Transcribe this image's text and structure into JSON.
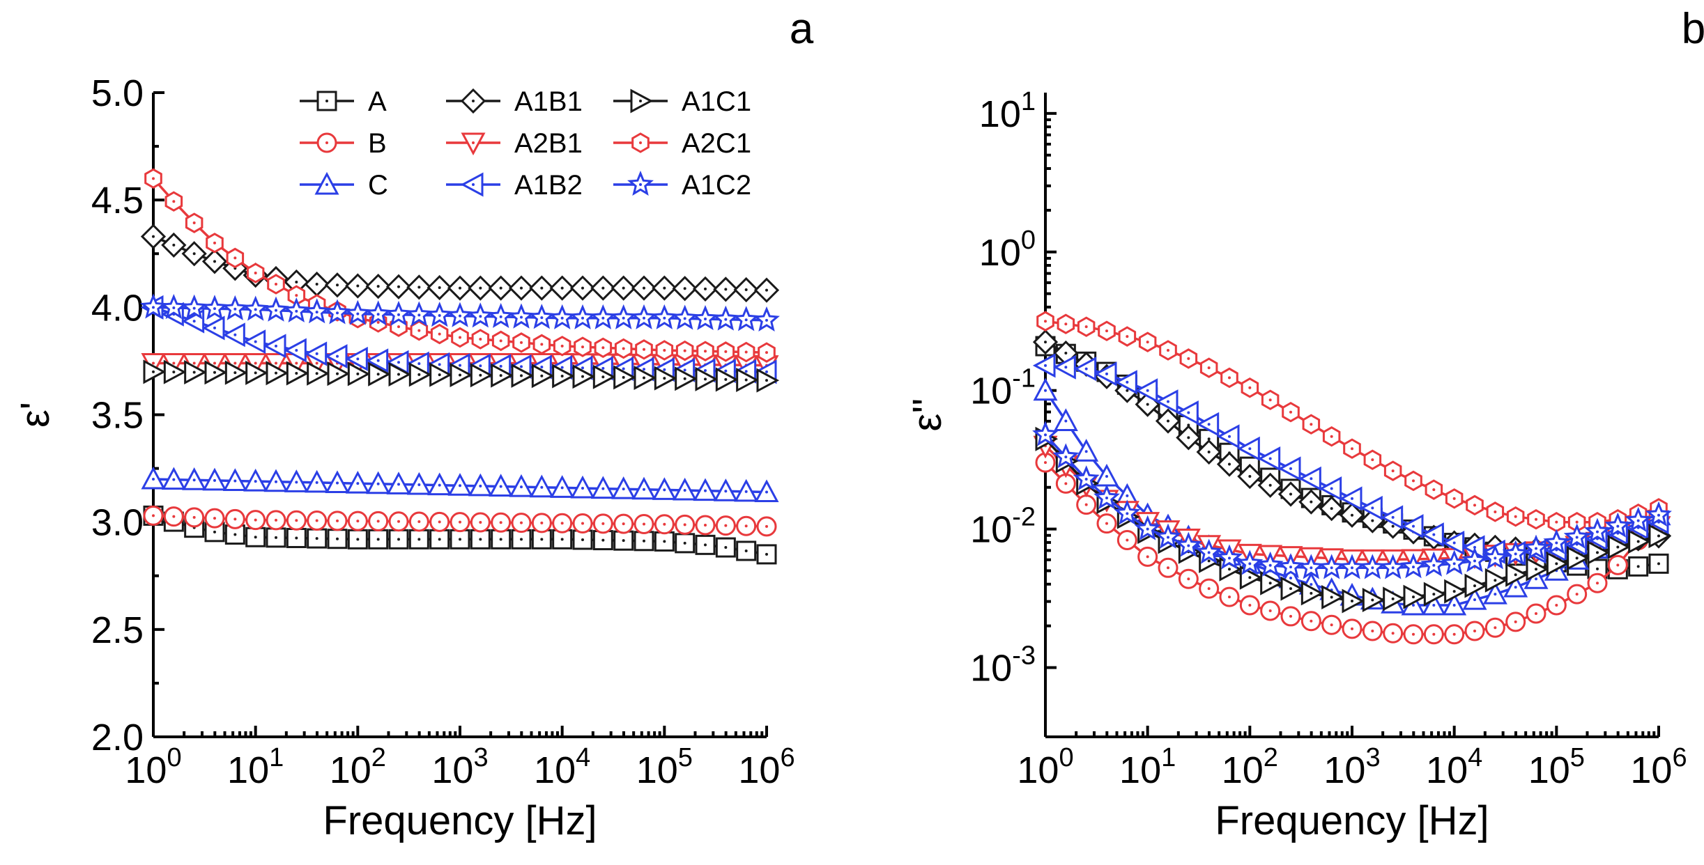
{
  "colors": {
    "black": "#1a1a1a",
    "red": "#e8393c",
    "blue": "#2b3fe6"
  },
  "legend": [
    {
      "key": "A",
      "label": "A",
      "color": "black",
      "marker": "square"
    },
    {
      "key": "A1B1",
      "label": "A1B1",
      "color": "black",
      "marker": "diamond"
    },
    {
      "key": "A1C1",
      "label": "A1C1",
      "color": "black",
      "marker": "tri-right"
    },
    {
      "key": "B",
      "label": "B",
      "color": "red",
      "marker": "circle"
    },
    {
      "key": "A2B1",
      "label": "A2B1",
      "color": "red",
      "marker": "tri-down"
    },
    {
      "key": "A2C1",
      "label": "A2C1",
      "color": "red",
      "marker": "hexagon"
    },
    {
      "key": "C",
      "label": "C",
      "color": "blue",
      "marker": "tri-up"
    },
    {
      "key": "A1B2",
      "label": "A1B2",
      "color": "blue",
      "marker": "tri-left"
    },
    {
      "key": "A1C2",
      "label": "A1C2",
      "color": "blue",
      "marker": "star"
    }
  ],
  "chart_data": [
    {
      "panel": "a",
      "type": "line",
      "xscale": "log",
      "xlabel": "Frequency [Hz]",
      "ylabel": "ε'",
      "xlim": [
        1,
        1000000
      ],
      "ylim": [
        2.0,
        5.0
      ],
      "xticks": [
        {
          "value": 1,
          "base": "10",
          "exp": "0"
        },
        {
          "value": 10,
          "base": "10",
          "exp": "1"
        },
        {
          "value": 100,
          "base": "10",
          "exp": "2"
        },
        {
          "value": 1000,
          "base": "10",
          "exp": "3"
        },
        {
          "value": 10000,
          "base": "10",
          "exp": "4"
        },
        {
          "value": 100000,
          "base": "10",
          "exp": "5"
        },
        {
          "value": 1000000,
          "base": "10",
          "exp": "6"
        }
      ],
      "yticks": [
        {
          "value": 2.0,
          "label": "2.0"
        },
        {
          "value": 2.5,
          "label": "2.5"
        },
        {
          "value": 3.0,
          "label": "3.0"
        },
        {
          "value": 3.5,
          "label": "3.5"
        },
        {
          "value": 4.0,
          "label": "4.0"
        },
        {
          "value": 4.5,
          "label": "4.5"
        },
        {
          "value": 5.0,
          "label": "5.0"
        }
      ],
      "series": [
        {
          "name": "A",
          "log_x": [
            0,
            0.5,
            1,
            2,
            3,
            4,
            5,
            5.5,
            6
          ],
          "y": [
            3.03,
            2.96,
            2.93,
            2.92,
            2.92,
            2.92,
            2.91,
            2.89,
            2.85
          ]
        },
        {
          "name": "B",
          "log_x": [
            0,
            1,
            3,
            5,
            6
          ],
          "y": [
            3.03,
            3.01,
            3.0,
            2.99,
            2.98
          ]
        },
        {
          "name": "C",
          "log_x": [
            0,
            1,
            3,
            5,
            6
          ],
          "y": [
            3.2,
            3.19,
            3.17,
            3.15,
            3.14
          ]
        },
        {
          "name": "A1B1",
          "log_x": [
            0,
            0.5,
            1,
            1.5,
            2,
            3,
            4,
            5,
            6
          ],
          "y": [
            4.33,
            4.23,
            4.15,
            4.11,
            4.1,
            4.09,
            4.09,
            4.09,
            4.08
          ]
        },
        {
          "name": "A2B1",
          "log_x": [
            0,
            2,
            4,
            6
          ],
          "y": [
            3.74,
            3.74,
            3.74,
            3.73
          ]
        },
        {
          "name": "A1B2",
          "log_x": [
            0,
            0.5,
            1,
            1.5,
            2,
            2.5,
            3,
            4,
            5,
            6
          ],
          "y": [
            4.0,
            3.92,
            3.84,
            3.79,
            3.76,
            3.74,
            3.73,
            3.72,
            3.71,
            3.7
          ]
        },
        {
          "name": "A1C1",
          "log_x": [
            0,
            2,
            4,
            6
          ],
          "y": [
            3.7,
            3.69,
            3.68,
            3.66
          ]
        },
        {
          "name": "A2C1",
          "log_x": [
            0,
            0.3,
            0.6,
            1,
            1.5,
            2,
            2.5,
            3,
            4,
            5,
            6
          ],
          "y": [
            4.6,
            4.44,
            4.3,
            4.16,
            4.03,
            3.95,
            3.9,
            3.86,
            3.82,
            3.8,
            3.79
          ]
        },
        {
          "name": "A1C2",
          "log_x": [
            0,
            1,
            2,
            3,
            4,
            5,
            6
          ],
          "y": [
            4.0,
            3.99,
            3.97,
            3.96,
            3.95,
            3.95,
            3.94
          ]
        }
      ]
    },
    {
      "panel": "b",
      "type": "line",
      "xscale": "log",
      "yscale": "log",
      "xlabel": "Frequency [Hz]",
      "ylabel": "ε''",
      "xlim": [
        1,
        1000000
      ],
      "ylim_log10": [
        -3.5,
        1.15
      ],
      "xticks": [
        {
          "value": 1,
          "base": "10",
          "exp": "0"
        },
        {
          "value": 10,
          "base": "10",
          "exp": "1"
        },
        {
          "value": 100,
          "base": "10",
          "exp": "2"
        },
        {
          "value": 1000,
          "base": "10",
          "exp": "3"
        },
        {
          "value": 10000,
          "base": "10",
          "exp": "4"
        },
        {
          "value": 100000,
          "base": "10",
          "exp": "5"
        },
        {
          "value": 1000000,
          "base": "10",
          "exp": "6"
        }
      ],
      "yticks": [
        {
          "value": 0.001,
          "base": "10",
          "exp": "-3"
        },
        {
          "value": 0.01,
          "base": "10",
          "exp": "-2"
        },
        {
          "value": 0.1,
          "base": "10",
          "exp": "-1"
        },
        {
          "value": 1,
          "base": "10",
          "exp": "0"
        },
        {
          "value": 10,
          "base": "10",
          "exp": "1"
        }
      ],
      "series": [
        {
          "name": "A",
          "log_x": [
            0,
            0.5,
            1,
            1.5,
            2,
            2.5,
            3,
            3.5,
            4,
            4.5,
            5,
            5.5,
            6
          ],
          "log_y": [
            -0.68,
            -0.82,
            -1.05,
            -1.3,
            -1.55,
            -1.75,
            -1.88,
            -1.98,
            -2.1,
            -2.18,
            -2.24,
            -2.3,
            -2.25
          ]
        },
        {
          "name": "B",
          "log_x": [
            0,
            0.5,
            1,
            1.5,
            2,
            2.5,
            3,
            3.5,
            4,
            4.5,
            5,
            5.5,
            6
          ],
          "log_y": [
            -1.52,
            -1.9,
            -2.2,
            -2.4,
            -2.55,
            -2.65,
            -2.72,
            -2.76,
            -2.76,
            -2.7,
            -2.55,
            -2.35,
            -1.9
          ]
        },
        {
          "name": "C",
          "log_x": [
            0,
            0.5,
            1,
            1.5,
            2,
            2.5,
            3,
            3.5,
            4,
            4.5,
            5,
            5.5,
            6
          ],
          "log_y": [
            -1.0,
            -1.55,
            -1.9,
            -2.1,
            -2.25,
            -2.38,
            -2.48,
            -2.55,
            -2.55,
            -2.45,
            -2.3,
            -2.1,
            -1.9
          ]
        },
        {
          "name": "A1B1",
          "log_x": [
            0,
            0.5,
            1,
            1.5,
            2,
            2.5,
            3,
            3.5,
            4,
            4.5,
            5,
            5.5,
            6
          ],
          "log_y": [
            -0.65,
            -0.85,
            -1.1,
            -1.4,
            -1.62,
            -1.78,
            -1.9,
            -2.0,
            -2.1,
            -2.14,
            -2.16,
            -2.1,
            -2.05
          ]
        },
        {
          "name": "A2B1",
          "log_x": [
            0,
            0.5,
            1,
            1.5,
            2,
            2.5,
            3,
            3.5,
            4,
            4.5,
            5,
            5.5,
            6
          ],
          "log_y": [
            -1.4,
            -1.75,
            -1.95,
            -2.1,
            -2.18,
            -2.2,
            -2.22,
            -2.22,
            -2.21,
            -2.18,
            -2.15,
            -2.08,
            -1.98
          ]
        },
        {
          "name": "A1B2",
          "log_x": [
            0,
            0.5,
            1,
            1.5,
            2,
            2.5,
            3,
            3.5,
            4,
            4.5,
            5,
            5.5,
            6
          ],
          "log_y": [
            -0.82,
            -0.85,
            -1.0,
            -1.2,
            -1.42,
            -1.6,
            -1.78,
            -1.95,
            -2.1,
            -2.18,
            -2.15,
            -2.05,
            -1.95
          ]
        },
        {
          "name": "A1C1",
          "log_x": [
            0,
            0.5,
            1,
            1.5,
            2,
            2.5,
            3,
            3.5,
            4,
            4.5,
            5,
            5.5,
            6
          ],
          "log_y": [
            -1.35,
            -1.75,
            -2.02,
            -2.2,
            -2.35,
            -2.45,
            -2.52,
            -2.5,
            -2.45,
            -2.35,
            -2.25,
            -2.15,
            -2.05
          ]
        },
        {
          "name": "A2C1",
          "log_x": [
            0,
            0.5,
            1,
            1.5,
            2,
            2.5,
            3,
            3.5,
            4,
            4.5,
            5,
            5.5,
            6
          ],
          "log_y": [
            -0.5,
            -0.55,
            -0.65,
            -0.8,
            -0.98,
            -1.2,
            -1.42,
            -1.62,
            -1.78,
            -1.9,
            -1.95,
            -1.95,
            -1.85
          ]
        },
        {
          "name": "A1C2",
          "log_x": [
            0,
            0.5,
            1,
            1.5,
            2,
            2.5,
            3,
            3.5,
            4,
            4.5,
            5,
            5.5,
            6
          ],
          "log_y": [
            -1.32,
            -1.72,
            -2.0,
            -2.15,
            -2.25,
            -2.28,
            -2.28,
            -2.28,
            -2.25,
            -2.2,
            -2.1,
            -2.0,
            -1.9
          ]
        }
      ]
    }
  ]
}
